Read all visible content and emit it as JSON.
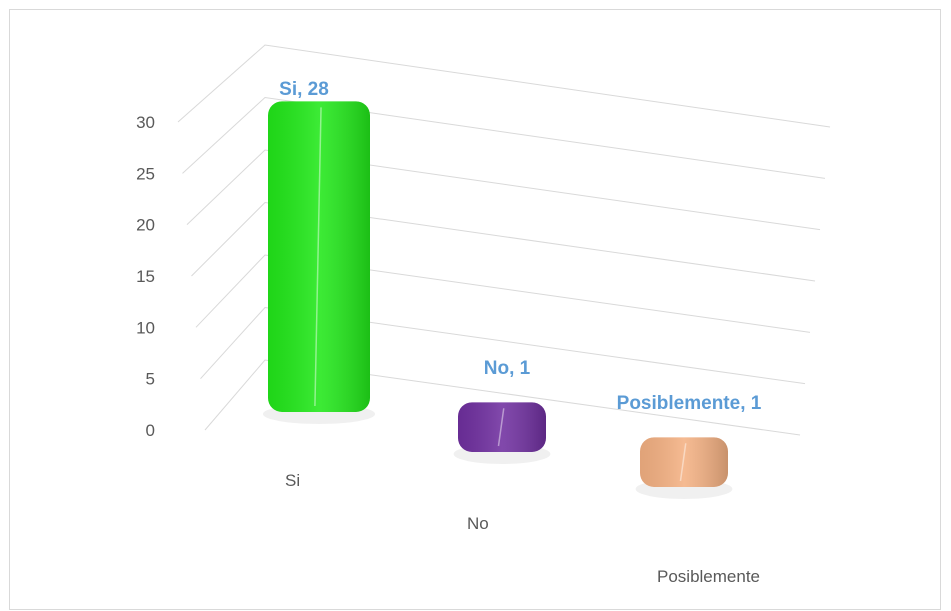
{
  "chart_data": {
    "type": "bar3d",
    "categories": [
      "Si",
      "No",
      "Posiblemente"
    ],
    "values": [
      28,
      1,
      1
    ],
    "value_labels": [
      "Si, 28",
      "No, 1",
      "Posiblemente, 1"
    ],
    "colors": [
      "#22e81a",
      "#7030a0",
      "#f4b183"
    ],
    "ylim": [
      0,
      30
    ],
    "yticks": [
      0,
      5,
      10,
      15,
      20,
      25,
      30
    ],
    "grid": true
  }
}
